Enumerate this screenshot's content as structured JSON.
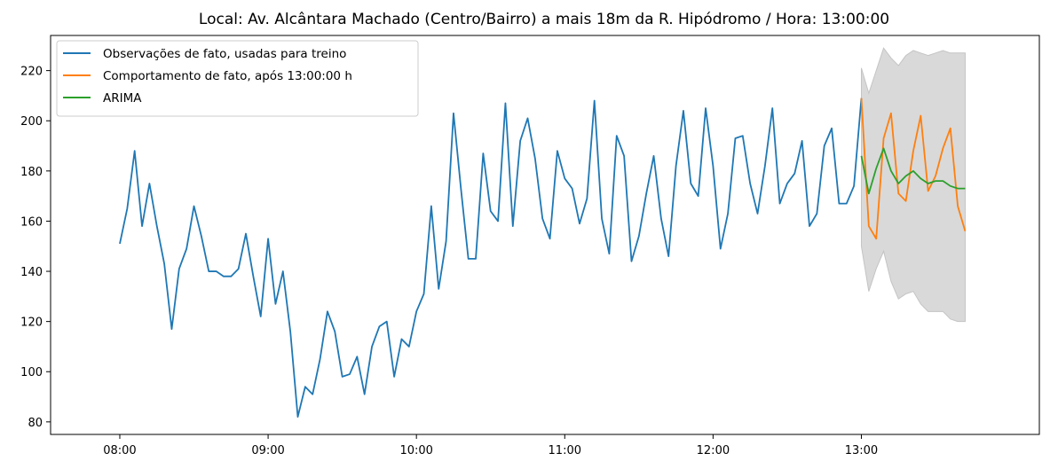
{
  "chart_data": {
    "type": "line",
    "title": "Local: Av. Alcântara Machado (Centro/Bairro) a mais 18m da R. Hipódromo / Hora: 13:00:00",
    "xlabel": "",
    "ylabel": "",
    "x_unit": "minutes since 08:00",
    "xlim": [
      -28,
      372
    ],
    "ylim": [
      75,
      234
    ],
    "x_ticks": [
      {
        "value": 0,
        "label": "08:00"
      },
      {
        "value": 60,
        "label": "09:00"
      },
      {
        "value": 120,
        "label": "10:00"
      },
      {
        "value": 180,
        "label": "11:00"
      },
      {
        "value": 240,
        "label": "12:00"
      },
      {
        "value": 300,
        "label": "13:00"
      }
    ],
    "y_ticks": [
      {
        "value": 80,
        "label": "80"
      },
      {
        "value": 100,
        "label": "100"
      },
      {
        "value": 120,
        "label": "120"
      },
      {
        "value": 140,
        "label": "140"
      },
      {
        "value": 160,
        "label": "160"
      },
      {
        "value": 180,
        "label": "180"
      },
      {
        "value": 200,
        "label": "200"
      },
      {
        "value": 220,
        "label": "220"
      }
    ],
    "grid": false,
    "legend": "top-left",
    "series": [
      {
        "name": "Observações de fato, usadas para treino",
        "color": "#1f77b4",
        "x": [
          0,
          3,
          6,
          9,
          12,
          15,
          18,
          21,
          24,
          27,
          30,
          33,
          36,
          39,
          42,
          45,
          48,
          51,
          54,
          57,
          60,
          63,
          66,
          69,
          72,
          75,
          78,
          81,
          84,
          87,
          90,
          93,
          96,
          99,
          102,
          105,
          108,
          111,
          114,
          117,
          120,
          123,
          126,
          129,
          132,
          135,
          138,
          141,
          144,
          147,
          150,
          153,
          156,
          159,
          162,
          165,
          168,
          171,
          174,
          177,
          180,
          183,
          186,
          189,
          192,
          195,
          198,
          201,
          204,
          207,
          210,
          213,
          216,
          219,
          222,
          225,
          228,
          231,
          234,
          237,
          240,
          243,
          246,
          249,
          252,
          255,
          258,
          261,
          264,
          267,
          270,
          273,
          276,
          279,
          282,
          285,
          288,
          291,
          294,
          297,
          300
        ],
        "values": [
          151,
          165,
          188,
          158,
          175,
          158,
          143,
          117,
          141,
          149,
          166,
          154,
          140,
          140,
          138,
          138,
          141,
          155,
          138,
          122,
          153,
          127,
          140,
          116,
          82,
          94,
          91,
          105,
          124,
          116,
          98,
          99,
          106,
          91,
          110,
          118,
          120,
          98,
          113,
          110,
          124,
          131,
          166,
          133,
          152,
          203,
          173,
          145,
          145,
          187,
          164,
          160,
          207,
          158,
          192,
          201,
          185,
          161,
          153,
          188,
          177,
          173,
          159,
          169,
          208,
          161,
          147,
          194,
          186,
          144,
          154,
          171,
          186,
          161,
          146,
          182,
          204,
          175,
          170,
          205,
          182,
          149,
          163,
          193,
          194,
          175,
          163,
          182,
          205,
          167,
          175,
          179,
          192,
          158,
          163,
          190,
          197,
          167,
          167,
          174,
          209
        ]
      },
      {
        "name": "Comportamento de fato, após 13:00:00 h",
        "color": "#ff7f0e",
        "x": [
          300,
          303,
          306,
          309,
          312,
          315,
          318,
          321,
          324,
          327,
          330,
          333,
          336,
          339,
          342
        ],
        "values": [
          209,
          158,
          153,
          193,
          203,
          171,
          168,
          188,
          202,
          172,
          178,
          189,
          197,
          166,
          156
        ]
      },
      {
        "name": "ARIMA",
        "color": "#2ca02c",
        "x": [
          300,
          303,
          306,
          309,
          312,
          315,
          318,
          321,
          324,
          327,
          330,
          333,
          336,
          339,
          342
        ],
        "values": [
          186,
          171,
          181,
          189,
          180,
          175,
          178,
          180,
          177,
          175,
          176,
          176,
          174,
          173,
          173
        ]
      }
    ],
    "confidence_band": {
      "color": "#d9d9d9",
      "x": [
        300,
        303,
        306,
        309,
        312,
        315,
        318,
        321,
        324,
        327,
        330,
        333,
        336,
        339,
        342
      ],
      "upper": [
        221,
        211,
        220,
        229,
        225,
        222,
        226,
        228,
        227,
        226,
        227,
        228,
        227,
        227,
        227
      ],
      "lower": [
        150,
        132,
        141,
        148,
        136,
        129,
        131,
        132,
        127,
        124,
        124,
        124,
        121,
        120,
        120
      ]
    }
  }
}
